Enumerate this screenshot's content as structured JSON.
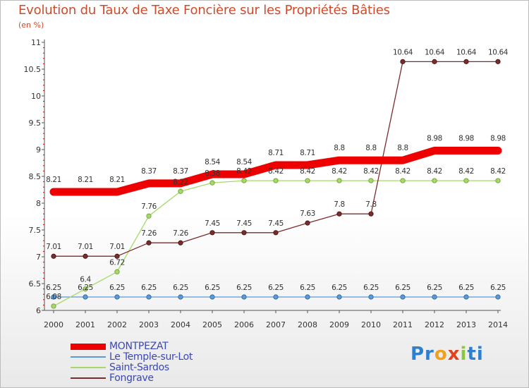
{
  "title": "Evolution du Taux de Taxe Foncière sur les Propriétés Bâties",
  "subtitle": "(en %)",
  "brand": {
    "p": "Pr",
    "o": "o",
    "x": "x",
    "i": "i",
    "t": "ti"
  },
  "chart_data": {
    "type": "line",
    "title": "Evolution du Taux de Taxe Foncière sur les Propriétés Bâties",
    "ylabel": "(en %)",
    "xlabel": "",
    "x": [
      "2000",
      "2001",
      "2002",
      "2003",
      "2004",
      "2005",
      "2006",
      "2007",
      "2008",
      "2009",
      "2010",
      "2011",
      "2012",
      "2013",
      "2014"
    ],
    "ylim": [
      6,
      11
    ],
    "yticks": [
      "6",
      "6.5",
      "7",
      "7.5",
      "8",
      "8.5",
      "9",
      "9.5",
      "10",
      "10.5",
      "11"
    ],
    "series": [
      {
        "name": "MONTPEZAT",
        "color": "#ee0000",
        "values": [
          8.21,
          8.21,
          8.21,
          8.37,
          8.37,
          8.54,
          8.54,
          8.71,
          8.71,
          8.8,
          8.8,
          8.8,
          8.98,
          8.98,
          8.98
        ],
        "labels": [
          "8.21",
          "8.21",
          "8.21",
          "8.37",
          "8.37",
          "8.54",
          "8.54",
          "8.71",
          "8.71",
          "8.8",
          "8.8",
          "8.8",
          "8.98",
          "8.98",
          "8.98"
        ]
      },
      {
        "name": "Le Temple-sur-Lot",
        "color": "#5b9bd5",
        "values": [
          6.25,
          6.25,
          6.25,
          6.25,
          6.25,
          6.25,
          6.25,
          6.25,
          6.25,
          6.25,
          6.25,
          6.25,
          6.25,
          6.25,
          6.25
        ],
        "labels": [
          "6.25",
          "6.25",
          "6.25",
          "6.25",
          "6.25",
          "6.25",
          "6.25",
          "6.25",
          "6.25",
          "6.25",
          "6.25",
          "6.25",
          "6.25",
          "6.25",
          "6.25"
        ]
      },
      {
        "name": "Saint-Sardos",
        "color": "#a6d96a",
        "values": [
          6.08,
          6.4,
          6.72,
          7.76,
          8.22,
          8.38,
          8.42,
          8.42,
          8.42,
          8.42,
          8.42,
          8.42,
          8.42,
          8.42,
          8.42
        ],
        "labels": [
          "6.08",
          "6.4",
          "6.72",
          "7.76",
          "8.22",
          "8.38",
          "8.42",
          "8.42",
          "8.42",
          "8.42",
          "8.42",
          "8.42",
          "8.42",
          "8.42",
          "8.42"
        ]
      },
      {
        "name": "Fongrave",
        "color": "#7b2c2c",
        "values": [
          7.01,
          7.01,
          7.01,
          7.26,
          7.26,
          7.45,
          7.45,
          7.45,
          7.63,
          7.8,
          7.8,
          10.64,
          10.64,
          10.64,
          10.64
        ],
        "labels": [
          "7.01",
          "7.01",
          "7.01",
          "7.26",
          "7.26",
          "7.45",
          "7.45",
          "7.45",
          "7.63",
          "7.8",
          "7.8",
          "10.64",
          "10.64",
          "10.64",
          "10.64"
        ]
      }
    ],
    "legend_position": "bottom-left"
  }
}
